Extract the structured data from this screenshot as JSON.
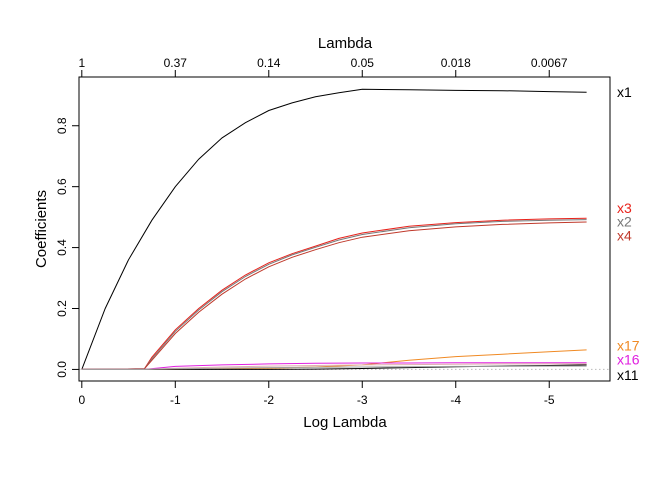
{
  "chart_data": {
    "type": "line",
    "xlabel": "Log Lambda",
    "ylabel": "Coefficients",
    "top_axis_title": "Lambda",
    "xlim": [
      0.03,
      -5.65
    ],
    "ylim": [
      -0.038,
      0.96
    ],
    "x_ticks": [
      0,
      -1,
      -2,
      -3,
      -4,
      -5
    ],
    "x_tick_labels": [
      "0",
      "-1",
      "-2",
      "-3",
      "-4",
      "-5"
    ],
    "y_ticks": [
      0.0,
      0.2,
      0.4,
      0.6,
      0.8
    ],
    "y_tick_labels": [
      "0.0",
      "0.2",
      "0.4",
      "0.6",
      "0.8"
    ],
    "top_ticks": [
      0,
      -1,
      -2,
      -3,
      -4,
      -5
    ],
    "top_tick_labels": [
      "1",
      "0.37",
      "0.14",
      "0.05",
      "0.018",
      "0.0067"
    ],
    "zero_line": "dotted grey",
    "series": [
      {
        "name": "x1",
        "color": "#000000",
        "x": [
          0,
          -0.25,
          -0.5,
          -0.75,
          -1,
          -1.25,
          -1.5,
          -1.75,
          -2,
          -2.25,
          -2.5,
          -2.75,
          -3,
          -3.5,
          -4,
          -4.5,
          -5,
          -5.4
        ],
        "y": [
          0,
          0.2,
          0.36,
          0.49,
          0.6,
          0.69,
          0.76,
          0.81,
          0.85,
          0.875,
          0.895,
          0.908,
          0.92,
          0.918,
          0.916,
          0.915,
          0.912,
          0.91
        ]
      },
      {
        "name": "x3",
        "color": "#e8221b",
        "x": [
          0,
          -0.67,
          -0.75,
          -1,
          -1.25,
          -1.5,
          -1.75,
          -2,
          -2.25,
          -2.5,
          -2.75,
          -3,
          -3.5,
          -4,
          -4.5,
          -5,
          -5.4
        ],
        "y": [
          0,
          0.002,
          0.04,
          0.13,
          0.2,
          0.26,
          0.31,
          0.35,
          0.38,
          0.405,
          0.43,
          0.448,
          0.47,
          0.482,
          0.49,
          0.494,
          0.496
        ]
      },
      {
        "name": "x2",
        "color": "#777777",
        "x": [
          0,
          -0.67,
          -0.75,
          -1,
          -1.25,
          -1.5,
          -1.75,
          -2,
          -2.25,
          -2.5,
          -2.75,
          -3,
          -3.5,
          -4,
          -4.5,
          -5,
          -5.4
        ],
        "y": [
          0,
          0.002,
          0.035,
          0.125,
          0.195,
          0.255,
          0.305,
          0.345,
          0.376,
          0.401,
          0.425,
          0.443,
          0.465,
          0.478,
          0.486,
          0.49,
          0.492
        ]
      },
      {
        "name": "x4",
        "color": "#c0392b",
        "x": [
          0,
          -0.67,
          -0.75,
          -1,
          -1.25,
          -1.5,
          -1.75,
          -2,
          -2.25,
          -2.5,
          -2.75,
          -3,
          -3.5,
          -4,
          -4.5,
          -5,
          -5.4
        ],
        "y": [
          0,
          0.002,
          0.03,
          0.118,
          0.188,
          0.247,
          0.297,
          0.337,
          0.368,
          0.393,
          0.416,
          0.434,
          0.455,
          0.468,
          0.476,
          0.481,
          0.484
        ]
      },
      {
        "name": "x17",
        "color": "#f08a24",
        "x": [
          0,
          -1,
          -2,
          -2.5,
          -3,
          -3.5,
          -4,
          -4.5,
          -5,
          -5.4
        ],
        "y": [
          0,
          0,
          0.004,
          0.008,
          0.015,
          0.03,
          0.042,
          0.05,
          0.058,
          0.064
        ]
      },
      {
        "name": "x16",
        "color": "#e020e0",
        "x": [
          0,
          -0.67,
          -1,
          -1.5,
          -2,
          -2.5,
          -3,
          -3.5,
          -4,
          -4.5,
          -5,
          -5.4
        ],
        "y": [
          0,
          0,
          0.01,
          0.015,
          0.018,
          0.02,
          0.021,
          0.021,
          0.022,
          0.022,
          0.022,
          0.022
        ]
      },
      {
        "name": "x11",
        "color": "#000000",
        "x": [
          0,
          -1,
          -2,
          -2.5,
          -3,
          -3.5,
          -4,
          -4.5,
          -5,
          -5.4
        ],
        "y": [
          0,
          0,
          0,
          0.001,
          0.003,
          0.006,
          0.009,
          0.011,
          0.013,
          0.015
        ]
      },
      {
        "name": "",
        "color": "#e0b0b0",
        "x": [
          0,
          -0.67,
          -1,
          -1.5,
          -2,
          -2.5,
          -3,
          -3.5,
          -4,
          -4.5,
          -5,
          -5.4
        ],
        "y": [
          0,
          0,
          0.004,
          0.008,
          0.011,
          0.013,
          0.015,
          0.016,
          0.017,
          0.018,
          0.018,
          0.018
        ]
      },
      {
        "name": "",
        "color": "#a0a0a0",
        "x": [
          0,
          -0.67,
          -1,
          -1.5,
          -2,
          -2.5,
          -3,
          -3.5,
          -4,
          -4.5,
          -5,
          -5.4
        ],
        "y": [
          0,
          0,
          0.002,
          0.004,
          0.006,
          0.007,
          0.008,
          0.009,
          0.01,
          0.01,
          0.011,
          0.011
        ]
      }
    ],
    "end_labels": [
      {
        "text": "x1",
        "color": "#000000",
        "y": 0.91
      },
      {
        "text": "x3",
        "color": "#e8221b",
        "y": 0.53
      },
      {
        "text": "x2",
        "color": "#777777",
        "y": 0.486
      },
      {
        "text": "x4",
        "color": "#c0392b",
        "y": 0.44
      },
      {
        "text": "x17",
        "color": "#f08a24",
        "y": 0.078
      },
      {
        "text": "x16",
        "color": "#e020e0",
        "y": 0.033
      },
      {
        "text": "x11",
        "color": "#000000",
        "y": -0.018
      }
    ]
  }
}
